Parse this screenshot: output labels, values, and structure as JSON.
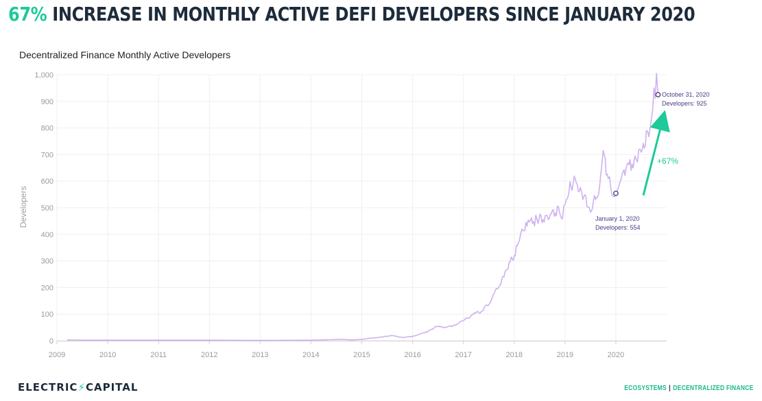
{
  "headline": {
    "highlight": "67%",
    "rest": " INCREASE IN MONTHLY ACTIVE DEFI DEVELOPERS SINCE JANUARY 2020"
  },
  "footer": {
    "logo_left": "ELECTRIC",
    "logo_bolt": "⚡",
    "logo_right": "CAPITAL",
    "section": "ECOSYSTEMS",
    "separator": "|",
    "subsection": "DECENTRALIZED FINANCE"
  },
  "colors": {
    "accent": "#1ec99a",
    "line": "#cdb2ee",
    "annotation": "#4b3a86",
    "grid": "#efefef",
    "headline": "#1d2b3a"
  },
  "chart_data": {
    "type": "line",
    "title": "Decentralized Finance Monthly Active Developers",
    "xlabel": "",
    "ylabel": "Developers",
    "xlim": [
      2009.0,
      2021.0
    ],
    "ylim": [
      0,
      1000
    ],
    "grid": true,
    "xticks": [
      2009,
      2010,
      2011,
      2012,
      2013,
      2014,
      2015,
      2016,
      2017,
      2018,
      2019,
      2020
    ],
    "xtick_labels": [
      "2009",
      "2010",
      "2011",
      "2012",
      "2013",
      "2014",
      "2015",
      "2016",
      "2017",
      "2018",
      "2019",
      "2020"
    ],
    "yticks": [
      0,
      100,
      200,
      300,
      400,
      500,
      600,
      700,
      800,
      900,
      1000
    ],
    "ytick_labels": [
      "0",
      "100",
      "200",
      "300",
      "400",
      "500",
      "600",
      "700",
      "800",
      "900",
      "1,000"
    ],
    "series": [
      {
        "name": "Developers",
        "x": [
          2009.2,
          2009.5,
          2010.0,
          2011.0,
          2012.0,
          2013.0,
          2014.0,
          2014.4,
          2014.6,
          2014.8,
          2015.0,
          2015.2,
          2015.4,
          2015.6,
          2015.7,
          2015.8,
          2016.0,
          2016.2,
          2016.3,
          2016.4,
          2016.45,
          2016.6,
          2016.8,
          2017.0,
          2017.2,
          2017.35,
          2017.5,
          2017.65,
          2017.8,
          2017.9,
          2018.0,
          2018.1,
          2018.15,
          2018.25,
          2018.3,
          2018.4,
          2018.45,
          2018.55,
          2018.65,
          2018.75,
          2018.85,
          2018.95,
          2019.0,
          2019.05,
          2019.1,
          2019.2,
          2019.3,
          2019.35,
          2019.45,
          2019.5,
          2019.6,
          2019.7,
          2019.75,
          2019.85,
          2019.9,
          2019.95,
          2020.0,
          2020.05,
          2020.1,
          2020.2,
          2020.3,
          2020.4,
          2020.45,
          2020.5,
          2020.6,
          2020.65,
          2020.7,
          2020.75,
          2020.8,
          2020.83
        ],
        "y": [
          3,
          2,
          2,
          2,
          2,
          1,
          2,
          4,
          5,
          3,
          5,
          10,
          14,
          20,
          15,
          12,
          16,
          28,
          35,
          45,
          55,
          50,
          55,
          75,
          100,
          110,
          140,
          190,
          240,
          290,
          320,
          380,
          420,
          430,
          440,
          450,
          455,
          460,
          470,
          480,
          490,
          460,
          520,
          560,
          580,
          600,
          570,
          540,
          520,
          500,
          530,
          600,
          690,
          620,
          580,
          560,
          554,
          575,
          600,
          650,
          660,
          690,
          710,
          700,
          760,
          800,
          860,
          920,
          970,
          925
        ]
      }
    ],
    "markers": [
      {
        "x": 2020.0,
        "y": 554
      },
      {
        "x": 2020.83,
        "y": 925
      }
    ],
    "annotations": [
      {
        "line1": "January 1, 2020",
        "line2": "Developers: 554"
      },
      {
        "line1": "October 31, 2020",
        "line2": "Developers: 925"
      },
      {
        "text": "+67%"
      }
    ]
  }
}
